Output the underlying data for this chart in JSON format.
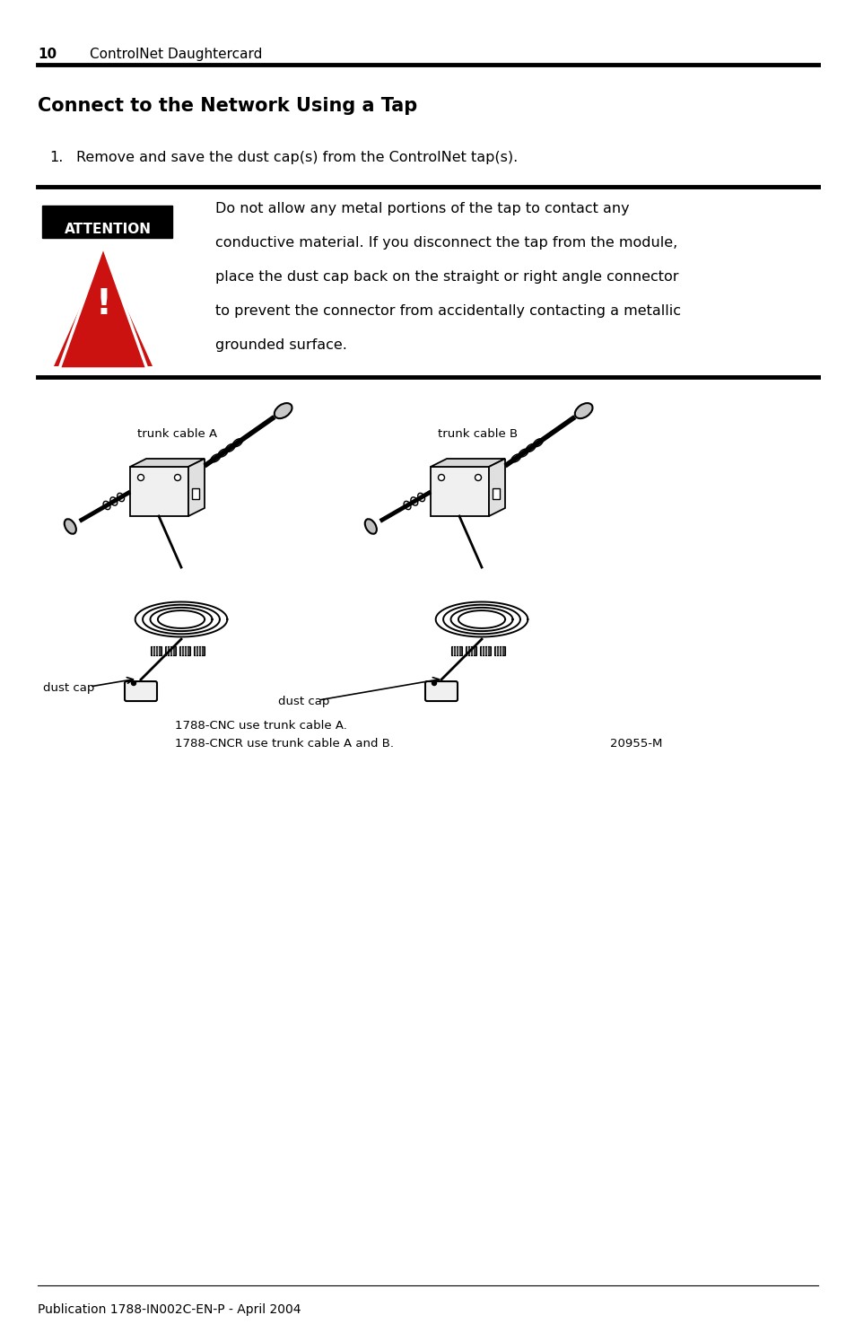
{
  "background_color": "#ffffff",
  "page_number": "10",
  "header_text": "ControlNet Daughtercard",
  "section_title": "Connect to the Network Using a Tap",
  "step1_text": "Remove and save the dust cap(s) from the ControlNet tap(s).",
  "attention_label": "ATTENTION",
  "attention_lines": [
    "Do not allow any metal portions of the tap to contact any",
    "conductive material. If you disconnect the tap from the module,",
    "place the dust cap back on the straight or right angle connector",
    "to prevent the connector from accidentally contacting a metallic",
    "grounded surface."
  ],
  "diagram_label1": "trunk cable A",
  "diagram_label2": "trunk cable B",
  "diagram_label3": "dust cap",
  "diagram_label4": "dust cap",
  "diagram_caption1": "1788-CNC use trunk cable A.",
  "diagram_caption2": "1788-CNCR use trunk cable A and B.",
  "diagram_ref": "20955-M",
  "footer_text": "Publication 1788-IN002C-EN-P - April 2004"
}
